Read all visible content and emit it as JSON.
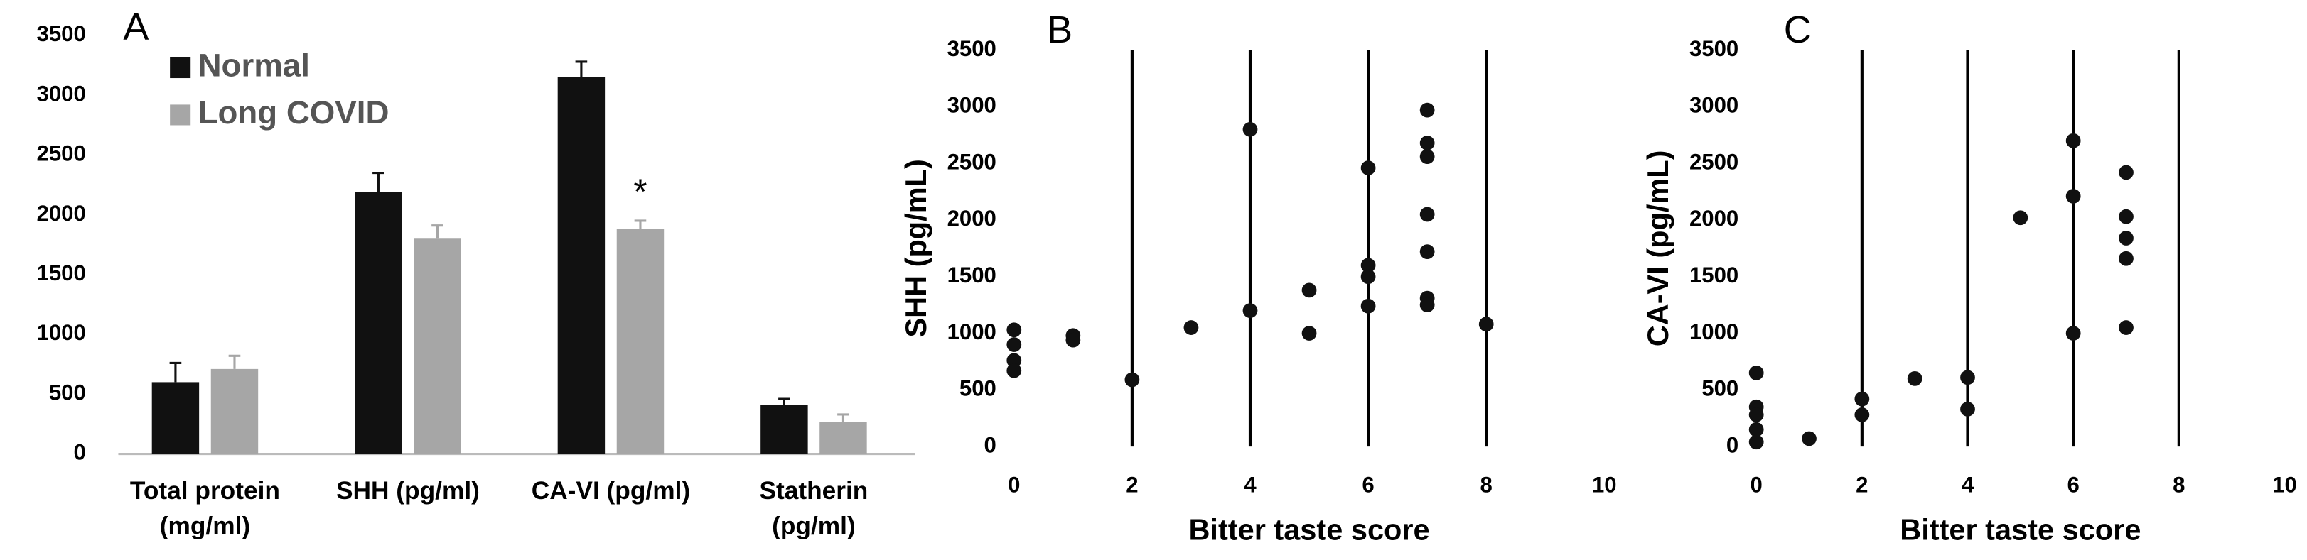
{
  "chart_data": [
    {
      "type": "bar",
      "label": "A",
      "categories": [
        [
          "Total protein",
          "(mg/ml)"
        ],
        [
          "SHH (pg/ml)"
        ],
        [
          "CA-VI (pg/ml)"
        ],
        [
          "Statherin",
          "(pg/ml)"
        ]
      ],
      "series": [
        {
          "name": "Normal",
          "color": "#111111",
          "values": [
            600,
            2190,
            3150,
            410
          ],
          "errors": [
            160,
            160,
            130,
            50
          ]
        },
        {
          "name": "Long COVID",
          "color": "#a6a6a6",
          "values": [
            710,
            1800,
            1880,
            270
          ],
          "errors": [
            110,
            110,
            70,
            60
          ]
        }
      ],
      "annotation": "*",
      "ylim": [
        0,
        3500
      ],
      "yticks": [
        0,
        500,
        1000,
        1500,
        2000,
        2500,
        3000,
        3500
      ],
      "legend": "top-left"
    },
    {
      "type": "scatter",
      "label": "B",
      "x_label": "Bitter taste score",
      "y_label": "SHH (pg/mL)",
      "color": "#111111",
      "x": [
        0,
        0,
        0,
        0,
        1,
        1,
        2,
        3,
        4,
        4,
        5,
        5,
        6,
        6,
        6,
        6,
        7,
        7,
        7,
        7,
        7,
        7,
        7,
        8
      ],
      "values": [
        1030,
        900,
        760,
        670,
        980,
        940,
        590,
        1050,
        2800,
        1200,
        1380,
        1000,
        2460,
        1600,
        1500,
        1240,
        2970,
        2680,
        2560,
        2050,
        1720,
        1310,
        1250,
        1080
      ],
      "xlim": [
        0,
        10
      ],
      "xticks": [
        0,
        2,
        4,
        6,
        8,
        10
      ],
      "ylim": [
        0,
        3500
      ],
      "yticks": [
        0,
        500,
        1000,
        1500,
        2000,
        2500,
        3000,
        3500
      ],
      "grid": true
    },
    {
      "type": "scatter",
      "label": "C",
      "x_label": "Bitter taste score",
      "y_label": "CA-VI (pg/mL)",
      "color": "#111111",
      "x": [
        0,
        0,
        0,
        0,
        0,
        1,
        2,
        2,
        3,
        4,
        4,
        5,
        6,
        6,
        6,
        7,
        7,
        7,
        7,
        7
      ],
      "values": [
        650,
        350,
        280,
        150,
        40,
        70,
        420,
        280,
        600,
        610,
        330,
        2020,
        2700,
        2210,
        1000,
        2420,
        2030,
        1840,
        1660,
        1050
      ],
      "xlim": [
        0,
        10
      ],
      "xticks": [
        0,
        2,
        4,
        6,
        8,
        10
      ],
      "ylim": [
        0,
        3500
      ],
      "yticks": [
        0,
        500,
        1000,
        1500,
        2000,
        2500,
        3000,
        3500
      ],
      "grid": true
    }
  ]
}
